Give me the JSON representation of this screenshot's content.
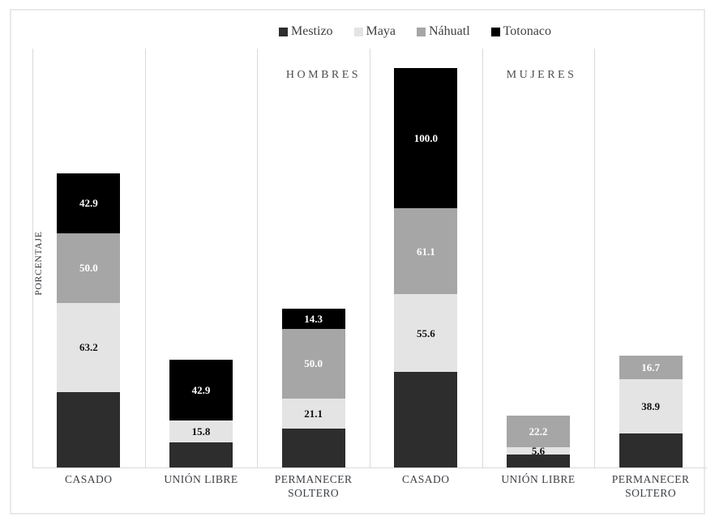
{
  "chart_data": {
    "type": "bar",
    "stacked": true,
    "title": "",
    "ylabel": "PORCENTAJE",
    "group_labels": [
      "HOMBRES",
      "MUJERES"
    ],
    "categories": [
      "CASADO",
      "UNIÓN LIBRE",
      "PERMANECER SOLTERO",
      "CASADO",
      "UNIÓN LIBRE",
      "PERMANECER SOLTERO"
    ],
    "series": [
      {
        "name": "Mestizo",
        "color": "#2d2d2d",
        "label_color": "#ffffff",
        "values": [
          54,
          18,
          28,
          68,
          9,
          24
        ],
        "labels": [
          "",
          "",
          "",
          "",
          "",
          ""
        ],
        "values_estimated": true
      },
      {
        "name": "Maya",
        "color": "#e4e4e4",
        "label_color": "#111111",
        "values": [
          63.2,
          15.8,
          21.1,
          55.6,
          5.6,
          38.9
        ],
        "labels": [
          "63.2",
          "15.8",
          "21.1",
          "55.6",
          "5.6",
          "38.9"
        ]
      },
      {
        "name": "Náhuatl",
        "color": "#a6a6a6",
        "label_color": "#ffffff",
        "values": [
          50.0,
          0,
          50.0,
          61.1,
          22.2,
          16.7
        ],
        "labels": [
          "50.0",
          "",
          "50.0",
          "61.1",
          "22.2",
          "16.7"
        ]
      },
      {
        "name": "Totonaco",
        "color": "#000000",
        "label_color": "#ffffff",
        "values": [
          42.9,
          42.9,
          14.3,
          100.0,
          0,
          0
        ],
        "labels": [
          "42.9",
          "42.9",
          "14.3",
          "100.0",
          "",
          ""
        ]
      }
    ],
    "legend_position": "top-center",
    "grid": "vertical-category-separators",
    "y_axis_ticks_visible": false
  }
}
